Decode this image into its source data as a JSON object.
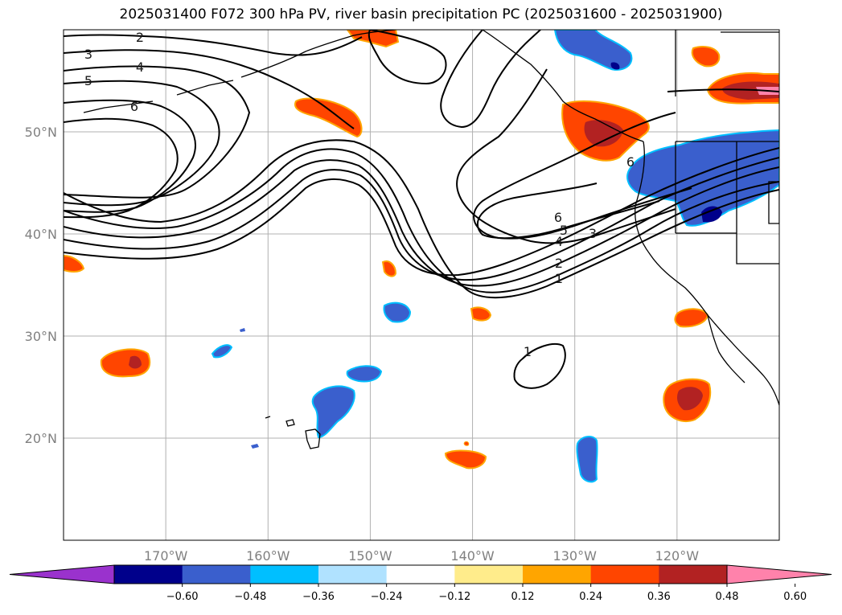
{
  "title": "2025031400 F072 300 hPa PV, river basin precipitation PC (2025031600 - 2025031900)",
  "map": {
    "lon_range": [
      -180,
      -110
    ],
    "lat_range": [
      10,
      60
    ],
    "lat_ticks": [
      {
        "value": 50,
        "label": "50°N"
      },
      {
        "value": 40,
        "label": "40°N"
      },
      {
        "value": 30,
        "label": "30°N"
      },
      {
        "value": 20,
        "label": "20°N"
      }
    ],
    "lon_ticks": [
      {
        "value": -170,
        "label": "170°W"
      },
      {
        "value": -160,
        "label": "160°W"
      },
      {
        "value": -150,
        "label": "150°W"
      },
      {
        "value": -140,
        "label": "140°W"
      },
      {
        "value": -130,
        "label": "130°W"
      },
      {
        "value": -120,
        "label": "120°W"
      }
    ],
    "gridlines": true,
    "contour_labels": [
      "1",
      "2",
      "3",
      "4",
      "5",
      "6"
    ]
  },
  "colorbar": {
    "colors": [
      "#9a32cd",
      "#00008b",
      "#3a5fcd",
      "#00bfff",
      "#b0e2ff",
      "#ffffff",
      "#ffec8b",
      "#ffa500",
      "#ff4500",
      "#b22222",
      "#ff82ab"
    ],
    "tick_labels": [
      "−0.60",
      "−0.48",
      "−0.36",
      "−0.24",
      "−0.12",
      "0.12",
      "0.24",
      "0.36",
      "0.48",
      "0.60"
    ]
  }
}
